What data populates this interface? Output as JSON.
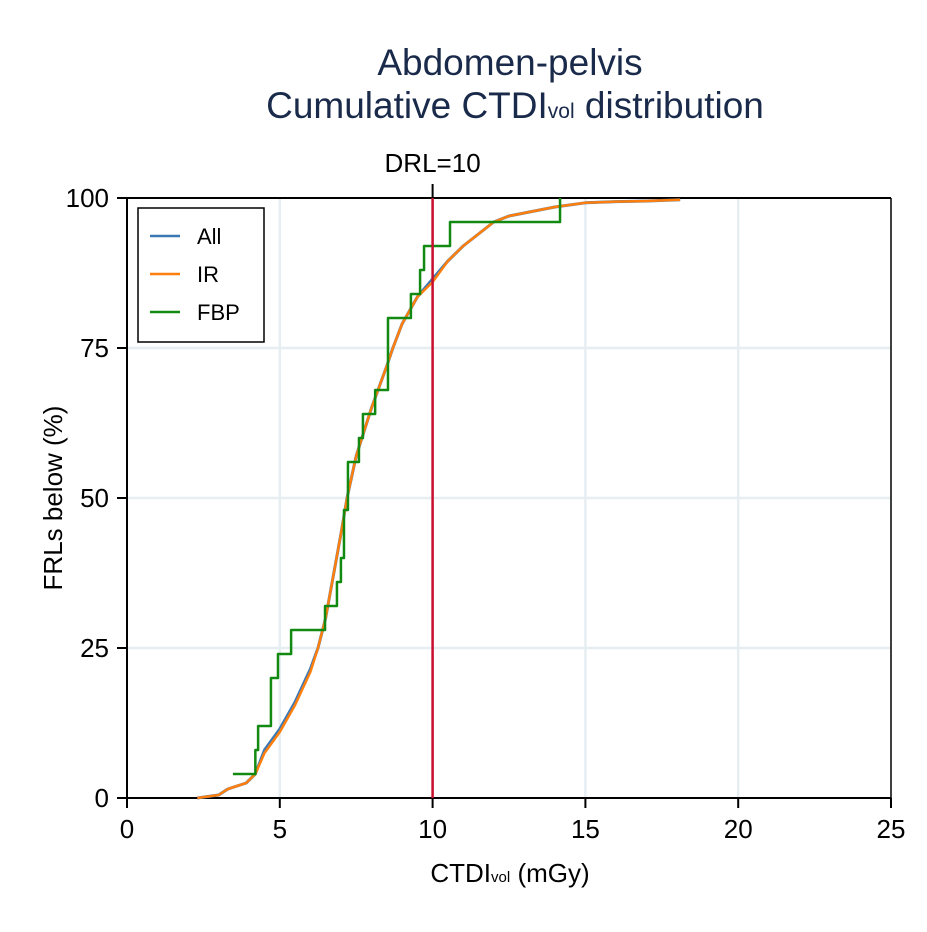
{
  "chart_data": {
    "type": "line",
    "title_line1": "Abdomen-pelvis",
    "title_line2_main": "Cumulative CTDI",
    "title_line2_sub": "vol",
    "title_line2_end": " distribution",
    "xlabel_main": "CTDI",
    "xlabel_sub": "vol",
    "xlabel_end": " (mGy)",
    "ylabel": "FRLs below (%)",
    "xlim": [
      0,
      25
    ],
    "ylim": [
      0,
      100
    ],
    "xticks": [
      0,
      5,
      10,
      15,
      20,
      25
    ],
    "yticks": [
      0,
      25,
      50,
      75,
      100
    ],
    "grid": true,
    "legend_position": "top-left",
    "reference_line": {
      "x": 10,
      "label": "DRL=10",
      "color": "#c8102e"
    },
    "series": [
      {
        "name": "All",
        "color": "#3a78b5",
        "step": false,
        "x": [
          2.3,
          3.0,
          3.3,
          3.9,
          4.2,
          4.5,
          5.0,
          5.5,
          6.0,
          6.25,
          6.5,
          7.0,
          7.2,
          7.5,
          8.0,
          8.5,
          8.7,
          9.0,
          9.5,
          10.0,
          10.5,
          11.0,
          11.5,
          12.0,
          12.5,
          13.0,
          14.0,
          15.0,
          16.0,
          17.0,
          18.1
        ],
        "y": [
          0,
          0.5,
          1.5,
          2.5,
          4,
          8,
          11.5,
          16,
          21.5,
          25,
          30,
          44,
          50,
          57,
          65,
          72,
          75,
          79,
          83.5,
          86.5,
          89.5,
          92,
          94,
          96,
          97,
          97.5,
          98.5,
          99.2,
          99.4,
          99.5,
          99.7
        ]
      },
      {
        "name": "IR",
        "color": "#ff7f0e",
        "step": false,
        "x": [
          2.3,
          3.0,
          3.3,
          3.9,
          4.2,
          4.5,
          5.0,
          5.5,
          6.0,
          6.25,
          6.5,
          7.0,
          7.2,
          7.5,
          8.0,
          8.5,
          8.7,
          9.0,
          9.5,
          10.0,
          10.5,
          11.0,
          11.5,
          12.0,
          12.5,
          13.0,
          14.0,
          15.0,
          16.0,
          17.0,
          18.1
        ],
        "y": [
          0,
          0.5,
          1.5,
          2.5,
          4,
          7.5,
          11,
          15.5,
          21,
          25,
          30,
          44,
          50,
          57,
          65,
          72,
          75,
          79,
          83.5,
          86,
          89.5,
          92,
          94,
          96,
          97,
          97.5,
          98.5,
          99.2,
          99.4,
          99.5,
          99.7
        ]
      },
      {
        "name": "FBP",
        "color": "#128a12",
        "step": true,
        "x": [
          3.86,
          4.2,
          4.29,
          4.71,
          4.94,
          5.37,
          6.48,
          6.87,
          7.0,
          7.1,
          7.23,
          7.59,
          7.72,
          8.12,
          8.54,
          9.29,
          9.59,
          9.72,
          10.57,
          14.17
        ],
        "y": [
          4,
          8,
          12,
          20,
          24,
          28,
          32,
          36,
          40,
          48,
          56,
          60,
          64,
          68,
          80,
          84,
          88,
          92,
          96,
          100
        ]
      }
    ]
  }
}
